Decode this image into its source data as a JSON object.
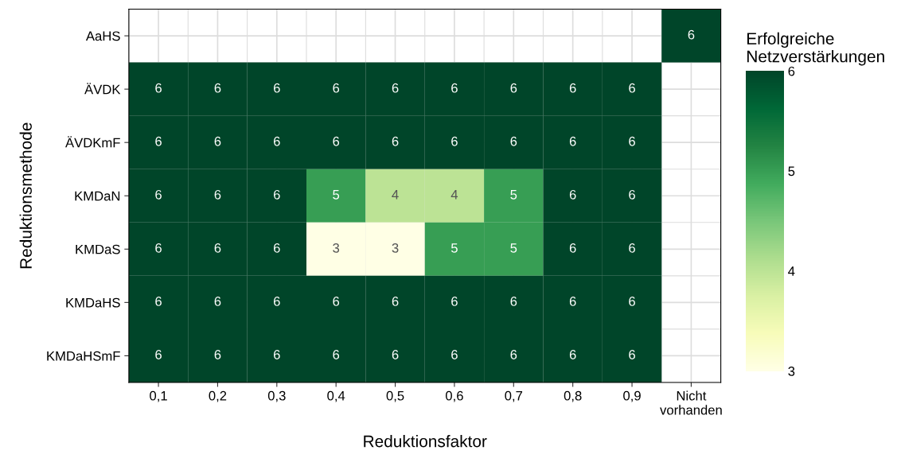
{
  "chart_data": {
    "type": "heatmap",
    "xlabel": "Reduktionsfaktor",
    "ylabel": "Reduktionsmethode",
    "clabel": "Erfolgreiche\nNetzverstärkungen",
    "categories": [
      "0,1",
      "0,2",
      "0,3",
      "0,4",
      "0,5",
      "0,6",
      "0,7",
      "0,8",
      "0,9",
      "Nicht\nvorhanden"
    ],
    "y_categories": [
      "AaHS",
      "ÄVDK",
      "ÄVDKmF",
      "KMDaN",
      "KMDaS",
      "KMDaHS",
      "KMDaHSmF"
    ],
    "cells": [
      [
        null,
        null,
        null,
        null,
        null,
        null,
        null,
        null,
        null,
        6
      ],
      [
        6,
        6,
        6,
        6,
        6,
        6,
        6,
        6,
        6,
        null
      ],
      [
        6,
        6,
        6,
        6,
        6,
        6,
        6,
        6,
        6,
        null
      ],
      [
        6,
        6,
        6,
        5,
        4,
        4,
        5,
        6,
        6,
        null
      ],
      [
        6,
        6,
        6,
        3,
        3,
        5,
        5,
        6,
        6,
        null
      ],
      [
        6,
        6,
        6,
        6,
        6,
        6,
        6,
        6,
        6,
        null
      ],
      [
        6,
        6,
        6,
        6,
        6,
        6,
        6,
        6,
        6,
        null
      ]
    ],
    "clim": [
      3,
      6
    ],
    "cticks": [
      3,
      4,
      5,
      6
    ],
    "data_labels": true,
    "grid": true
  }
}
